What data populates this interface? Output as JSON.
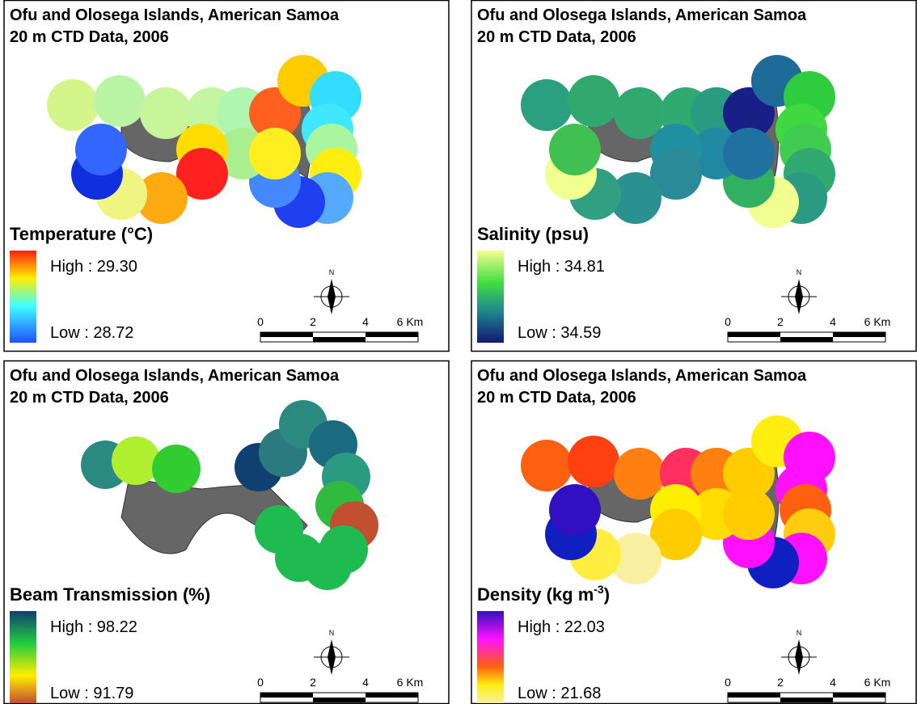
{
  "panels": [
    {
      "title": "Ofu and Olosega Islands, American Samoa",
      "subtitle": "20 m CTD Data, 2006",
      "legend_title": "Temperature (°C)",
      "high": "High : 29.30",
      "low": "Low : 28.72",
      "north": "N",
      "scale": [
        "0",
        "2",
        "4",
        "6 Km"
      ]
    },
    {
      "title": "Ofu and Olosega Islands, American Samoa",
      "subtitle": "20 m CTD Data, 2006",
      "legend_title": "Salinity (psu)",
      "high": "High : 34.81",
      "low": "Low : 34.59",
      "north": "N",
      "scale": [
        "0",
        "2",
        "4",
        "6 Km"
      ]
    },
    {
      "title": "Ofu and Olosega Islands, American Samoa",
      "subtitle": "20 m CTD Data, 2006",
      "legend_title": "Beam Transmission (%)",
      "high": "High : 98.22",
      "low": "Low : 91.79",
      "north": "N",
      "scale": [
        "0",
        "2",
        "4",
        "6 Km"
      ]
    },
    {
      "title": "Ofu and Olosega Islands, American Samoa",
      "subtitle": "20 m CTD Data, 2006",
      "legend_title": "Density (kg m",
      "legend_title_sup": "-3",
      "legend_title_end": ")",
      "high": "High : 22.03",
      "low": "Low : 21.68",
      "north": "N",
      "scale": [
        "0",
        "2",
        "4",
        "6 Km"
      ]
    }
  ]
}
